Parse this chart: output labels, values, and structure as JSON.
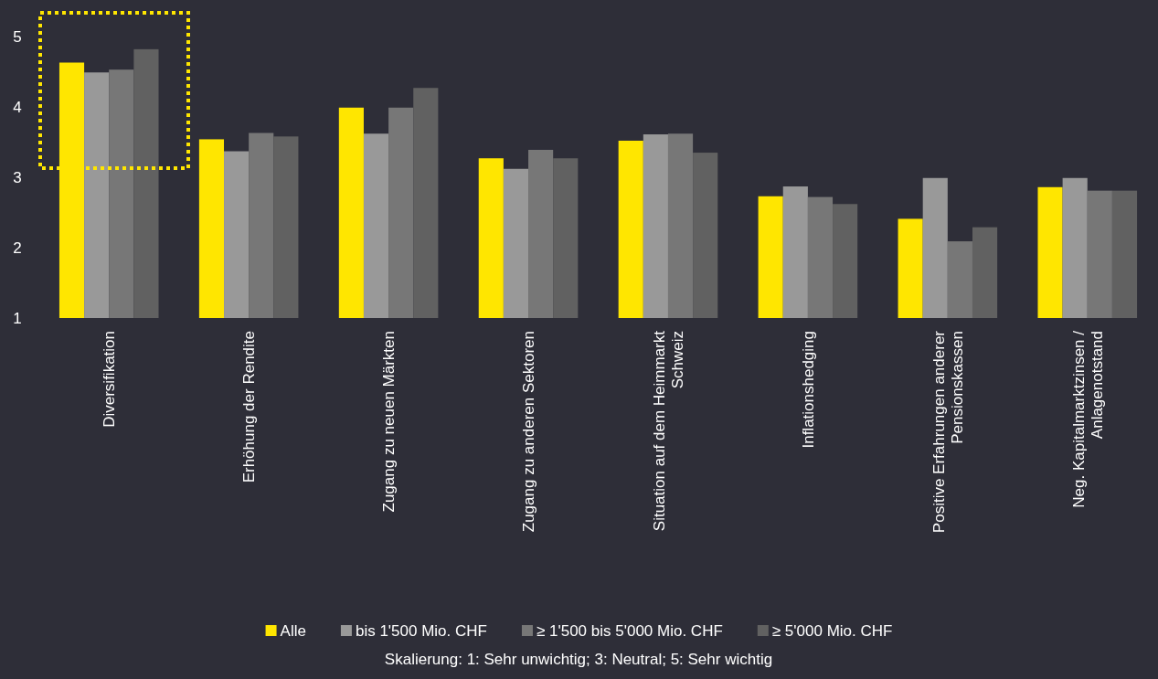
{
  "chart_data": {
    "type": "bar",
    "categories": [
      "Diversifikation",
      "Erhöhung der Rendite",
      "Zugang zu neuen Märkten",
      "Zugang zu anderen Sektoren",
      "Situation auf dem Heimmarkt Schweiz",
      "Inflationshedging",
      "Positive Erfahrungen anderer Pensionskassen",
      "Neg. Kapitalmarktzinsen / Anlagenotstand"
    ],
    "series": [
      {
        "name": "Alle",
        "color": "#ffe600",
        "values": [
          4.63,
          3.54,
          3.99,
          3.27,
          3.52,
          2.73,
          2.41,
          2.86
        ]
      },
      {
        "name": "bis 1'500 Mio. CHF",
        "color": "#999999",
        "values": [
          4.49,
          3.37,
          3.62,
          3.12,
          3.61,
          2.87,
          2.99,
          2.99
        ]
      },
      {
        "name": "≥ 1'500 bis 5'000 Mio. CHF",
        "color": "#777777",
        "values": [
          4.53,
          3.63,
          3.99,
          3.39,
          3.62,
          2.72,
          2.09,
          2.81
        ]
      },
      {
        "name": "≥ 5'000 Mio. CHF",
        "color": "#616161",
        "values": [
          4.82,
          3.58,
          4.27,
          3.27,
          3.35,
          2.62,
          2.29,
          2.81
        ]
      }
    ],
    "ylim": [
      1,
      5
    ],
    "yticks": [
      1,
      2,
      3,
      4,
      5
    ],
    "grid": false,
    "legend": "bottom",
    "annotations": [
      "Skalierung: 1: Sehr unwichtig; 3: Neutral; 5: Sehr wichtig"
    ]
  }
}
